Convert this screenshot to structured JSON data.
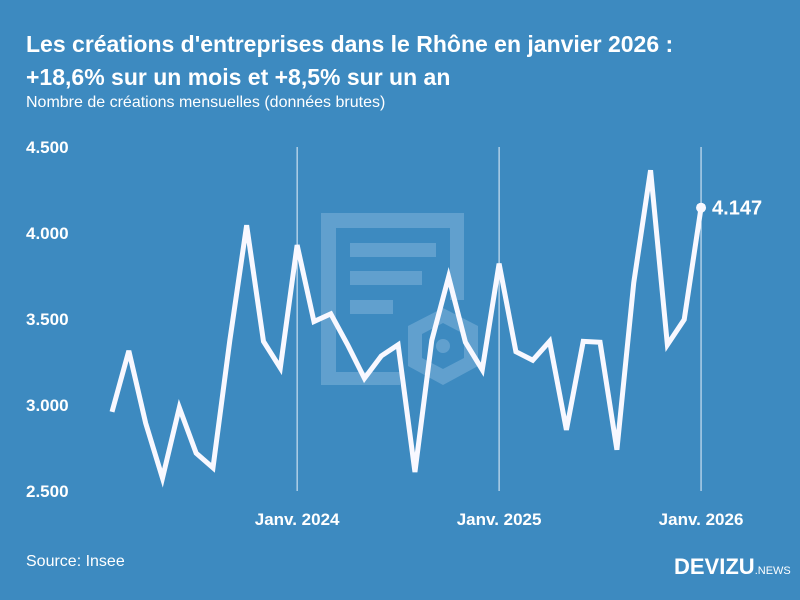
{
  "title_line1": "Les créations d'entreprises dans le Rhône en janvier 2026 :",
  "title_line2": "+18,6% sur un mois et +8,5% sur un an",
  "subtitle": "Nombre de créations mensuelles (données brutes)",
  "source": "Source: Insee",
  "logo": {
    "main": "DEVIZU",
    "suffix": "NEWS"
  },
  "colors": {
    "background": "#3d8ac0",
    "line": "#f8f8ff",
    "watermark": "#62a1cf"
  },
  "watermark_icon": "document-hexagon-icon",
  "chart_data": {
    "type": "line",
    "title": "Les créations d'entreprises dans le Rhône en janvier 2026 : +18,6% sur un mois et +8,5% sur un an",
    "subtitle": "Nombre de créations mensuelles (données brutes)",
    "x": [
      "2023-02",
      "2023-03",
      "2023-04",
      "2023-05",
      "2023-06",
      "2023-07",
      "2023-08",
      "2023-09",
      "2023-10",
      "2023-11",
      "2023-12",
      "2024-01",
      "2024-02",
      "2024-03",
      "2024-04",
      "2024-05",
      "2024-06",
      "2024-07",
      "2024-08",
      "2024-09",
      "2024-10",
      "2024-11",
      "2024-12",
      "2025-01",
      "2025-02",
      "2025-03",
      "2025-04",
      "2025-05",
      "2025-06",
      "2025-07",
      "2025-08",
      "2025-09",
      "2025-10",
      "2025-11",
      "2025-12",
      "2026-01"
    ],
    "series": [
      {
        "values": [
          2960,
          3315,
          2895,
          2575,
          2985,
          2720,
          2635,
          3375,
          4045,
          3370,
          3215,
          3930,
          3485,
          3530,
          3350,
          3155,
          3285,
          3350,
          2610,
          3375,
          3745,
          3365,
          3205,
          3822,
          3310,
          3260,
          3370,
          2855,
          3370,
          3365,
          2740,
          3710,
          4365,
          3350,
          3497,
          4147
        ]
      }
    ],
    "ylim": [
      2500,
      4500
    ],
    "yticks": [
      {
        "value": 2500,
        "label": "2.500"
      },
      {
        "value": 3000,
        "label": "3.000"
      },
      {
        "value": 3500,
        "label": "3.500"
      },
      {
        "value": 4000,
        "label": "4.000"
      },
      {
        "value": 4500,
        "label": "4.500"
      }
    ],
    "xticks": [
      {
        "value": "2024-01",
        "label": "Janv. 2024"
      },
      {
        "value": "2025-01",
        "label": "Janv. 2025"
      },
      {
        "value": "2026-01",
        "label": "Janv. 2026"
      }
    ],
    "annotation": {
      "x": "2026-01",
      "label": "4.147"
    },
    "grid": "vertical lines at January"
  }
}
